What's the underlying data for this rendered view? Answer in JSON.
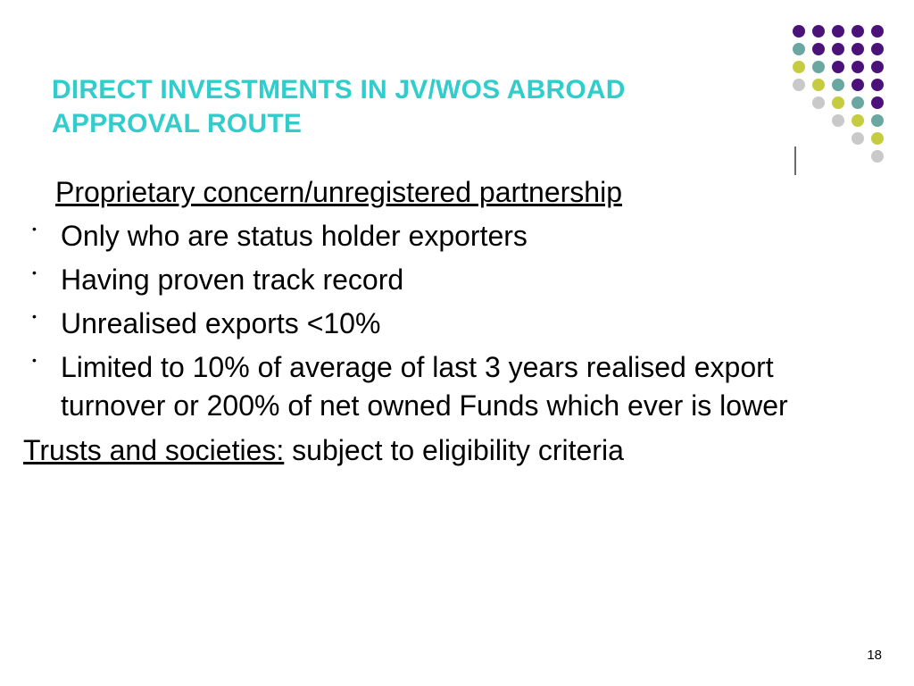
{
  "title": {
    "line1": "DIRECT INVESTMENTS IN JV/WOS ABROAD",
    "line2": "APPROVAL ROUTE",
    "color": "#33cccc",
    "fontsize": 30,
    "fontweight": "bold"
  },
  "subheading": {
    "text": "Proprietary concern/unregistered partnership",
    "fontsize": 32,
    "underline": true
  },
  "bullets": [
    "Only who are status holder exporters",
    "Having proven track record",
    "Unrealised exports <10%",
    "Limited to 10% of average of last 3 years realised export turnover or 200% of net owned Funds which ever is lower"
  ],
  "closing": {
    "underlined": "Trusts and societies:",
    "rest": " subject to eligibility criteria",
    "fontsize": 32
  },
  "page_number": "18",
  "decorative_dots": {
    "colors": {
      "purple": "#4b1279",
      "teal": "#6aa7a0",
      "lime": "#c6cc3f",
      "gray": "#c9c9c9"
    },
    "rows": [
      [
        "purple",
        "purple",
        "purple",
        "purple",
        "purple"
      ],
      [
        "teal",
        "purple",
        "purple",
        "purple",
        "purple"
      ],
      [
        "lime",
        "teal",
        "purple",
        "purple",
        "purple"
      ],
      [
        "gray",
        "lime",
        "teal",
        "purple",
        "purple"
      ],
      [
        "gray",
        "lime",
        "teal",
        "purple"
      ],
      [
        "gray",
        "lime",
        "teal"
      ],
      [
        "gray",
        "lime"
      ],
      [
        "gray"
      ]
    ],
    "dot_size": 14,
    "gap": 8
  },
  "rule": {
    "color": "#6a6a6a"
  },
  "body_font": {
    "size": 32,
    "color": "#000000"
  },
  "background_color": "#ffffff"
}
